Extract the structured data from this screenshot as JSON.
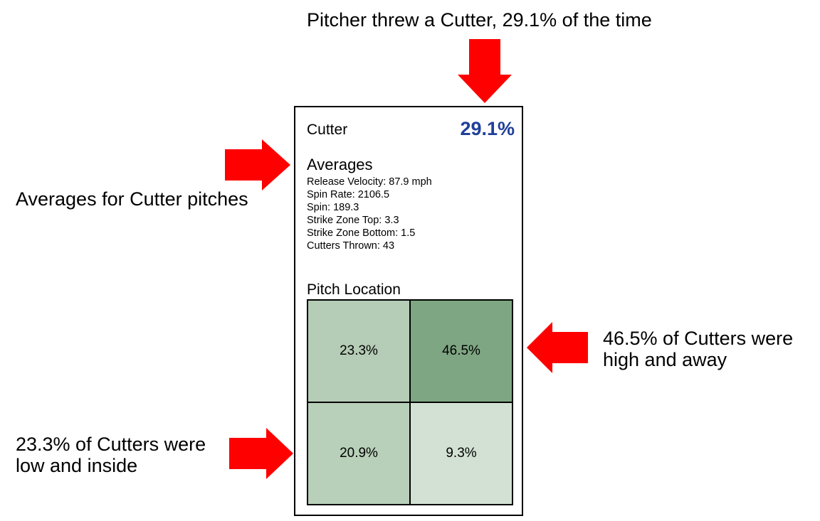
{
  "annotations": {
    "top": "Pitcher threw a Cutter, 29.1% of the time",
    "left": "Averages for Cutter pitches",
    "right": [
      "46.5% of Cutters were",
      "high and away"
    ],
    "bottom": [
      "23.3% of Cutters were",
      "low and inside"
    ]
  },
  "card": {
    "pitch_name": "Cutter",
    "pitch_pct": "29.1%",
    "pct_color": "#1f3f99",
    "averages_title": "Averages",
    "averages": [
      "Release Velocity: 87.9 mph",
      "Spin Rate: 2106.5",
      "Spin: 189.3",
      "Strike Zone Top: 3.3",
      "Strike Zone Bottom: 1.5",
      "Cutters Thrown: 43"
    ],
    "location_title": "Pitch Location",
    "zones": [
      {
        "label": "23.3%",
        "value": 23.3,
        "color": "#b5ccb6"
      },
      {
        "label": "46.5%",
        "value": 46.5,
        "color": "#7ea682"
      },
      {
        "label": "20.9%",
        "value": 20.9,
        "color": "#b8cfb9"
      },
      {
        "label": "9.3%",
        "value": 9.3,
        "color": "#d2e1d3"
      }
    ]
  },
  "arrow_color": "#ff0000"
}
